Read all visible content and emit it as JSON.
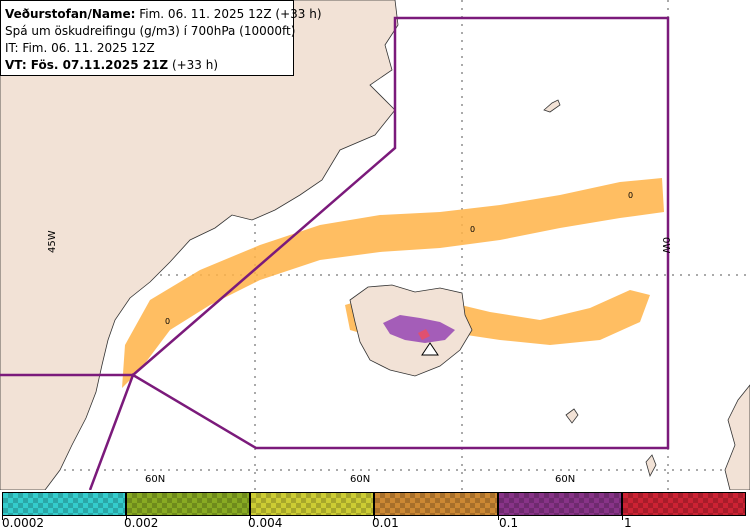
{
  "info": {
    "line1_bold": "Veðurstofan/Name:",
    "line1_rest": " Fim. 06. 11. 2025 12Z (+33 h)",
    "line2": "Spá um öskudreifingu (g/m3) í 700hPa (10000ft)",
    "line3": "IT: Fim. 06. 11. 2025 12Z",
    "line4_bold": "VT: Fös. 07.11.2025 21Z",
    "line4_rest": " (+33 h)"
  },
  "map_labels": {
    "lon_45w": "45W",
    "lon_0w": "0W",
    "lat_a": "60N",
    "lat_b": "60N",
    "lat_c": "60N",
    "contour_a": "0",
    "contour_b": "0",
    "contour_c": "0"
  },
  "legend": {
    "ticks": [
      "0.0002",
      "0.002",
      "0.004",
      "0.01",
      "0.1",
      "1"
    ],
    "colors": [
      "#33cccc",
      "#88aa22",
      "#cccc33",
      "#cc8833",
      "#883388",
      "#cc2233"
    ]
  },
  "colors": {
    "land": "#f2e2d6",
    "sea": "#ffffff",
    "boundary": "#7b1a7b",
    "ash_low": "#ffb347",
    "ash_high": "#9b4fb5"
  }
}
